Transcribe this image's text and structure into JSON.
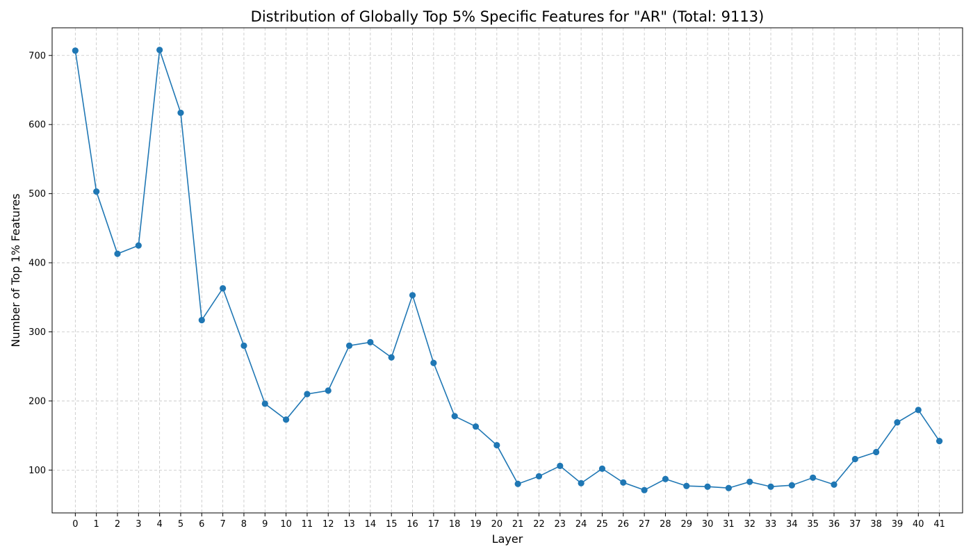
{
  "chart_data": {
    "type": "line",
    "title": "Distribution of Globally Top 5% Specific Features for \"AR\" (Total: 9113)",
    "xlabel": "Layer",
    "ylabel": "Number of Top 1% Features",
    "x": [
      0,
      1,
      2,
      3,
      4,
      5,
      6,
      7,
      8,
      9,
      10,
      11,
      12,
      13,
      14,
      15,
      16,
      17,
      18,
      19,
      20,
      21,
      22,
      23,
      24,
      25,
      26,
      27,
      28,
      29,
      30,
      31,
      32,
      33,
      34,
      35,
      36,
      37,
      38,
      39,
      40,
      41
    ],
    "series": [
      {
        "color": "#1f77b4",
        "marker": "circle",
        "values": [
          707,
          503,
          413,
          425,
          708,
          617,
          317,
          363,
          280,
          196,
          173,
          210,
          215,
          280,
          285,
          263,
          353,
          255,
          178,
          163,
          136,
          80,
          91,
          106,
          81,
          102,
          82,
          71,
          87,
          77,
          76,
          74,
          83,
          76,
          78,
          89,
          79,
          116,
          126,
          169,
          187,
          142
        ]
      }
    ],
    "xlim": [
      -1.1,
      42.1
    ],
    "ylim": [
      38,
      740
    ],
    "yticks": [
      100,
      200,
      300,
      400,
      500,
      600,
      700
    ],
    "grid": true
  }
}
